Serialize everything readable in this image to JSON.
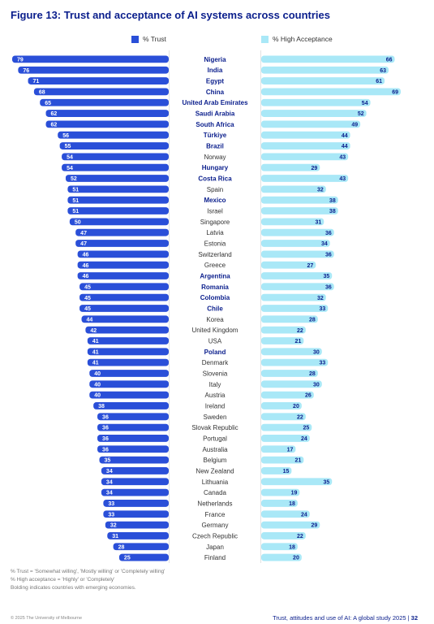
{
  "title": "Figure 13: Trust and acceptance of AI systems across countries",
  "legend": {
    "trust": "% Trust",
    "acceptance": "% High Acceptance"
  },
  "colors": {
    "trust": "#2a4fd8",
    "acceptance": "#a9e8f7",
    "title": "#0a1e8c"
  },
  "notes": [
    "% Trust = 'Somewhat willing', 'Mostly willing' or 'Completely willing'",
    "% High acceptance = 'Highly' or 'Completely'",
    "Bolding indicates countries with emerging economies."
  ],
  "footer": {
    "copyright": "© 2025 The University of Melbourne",
    "report": "Trust, attitudes and use of AI: A global study 2025 | ",
    "page": "32"
  },
  "chart_data": {
    "type": "bar",
    "orientation": "horizontal-diverging",
    "grid": false,
    "legend_position": "top",
    "categories": [
      "Nigeria",
      "India",
      "Egypt",
      "China",
      "United Arab Emirates",
      "Saudi Arabia",
      "South Africa",
      "Türkiye",
      "Brazil",
      "Norway",
      "Hungary",
      "Costa Rica",
      "Spain",
      "Mexico",
      "Israel",
      "Singapore",
      "Latvia",
      "Estonia",
      "Switzerland",
      "Greece",
      "Argentina",
      "Romania",
      "Colombia",
      "Chile",
      "Korea",
      "United Kingdom",
      "USA",
      "Poland",
      "Denmark",
      "Slovenia",
      "Italy",
      "Austria",
      "Ireland",
      "Sweden",
      "Slovak Republic",
      "Portugal",
      "Australia",
      "Belgium",
      "New Zealand",
      "Lithuania",
      "Canada",
      "Netherlands",
      "France",
      "Germany",
      "Czech Republic",
      "Japan",
      "Finland"
    ],
    "emerging": [
      "Nigeria",
      "India",
      "Egypt",
      "China",
      "United Arab Emirates",
      "Saudi Arabia",
      "South Africa",
      "Türkiye",
      "Brazil",
      "Hungary",
      "Costa Rica",
      "Mexico",
      "Argentina",
      "Romania",
      "Colombia",
      "Chile",
      "Poland"
    ],
    "series": [
      {
        "name": "% Trust",
        "values": [
          79,
          76,
          71,
          68,
          65,
          62,
          62,
          56,
          55,
          54,
          54,
          52,
          51,
          51,
          51,
          50,
          47,
          47,
          46,
          46,
          46,
          45,
          45,
          45,
          44,
          42,
          41,
          41,
          41,
          40,
          40,
          40,
          38,
          36,
          36,
          36,
          36,
          35,
          34,
          34,
          34,
          33,
          33,
          32,
          31,
          28,
          25
        ]
      },
      {
        "name": "% High Acceptance",
        "values": [
          66,
          63,
          61,
          69,
          54,
          52,
          49,
          44,
          44,
          43,
          29,
          43,
          32,
          38,
          38,
          31,
          36,
          34,
          36,
          27,
          35,
          36,
          32,
          33,
          28,
          22,
          21,
          30,
          33,
          28,
          30,
          26,
          20,
          22,
          25,
          24,
          17,
          21,
          15,
          35,
          19,
          18,
          24,
          29,
          22,
          18,
          20
        ]
      }
    ]
  }
}
